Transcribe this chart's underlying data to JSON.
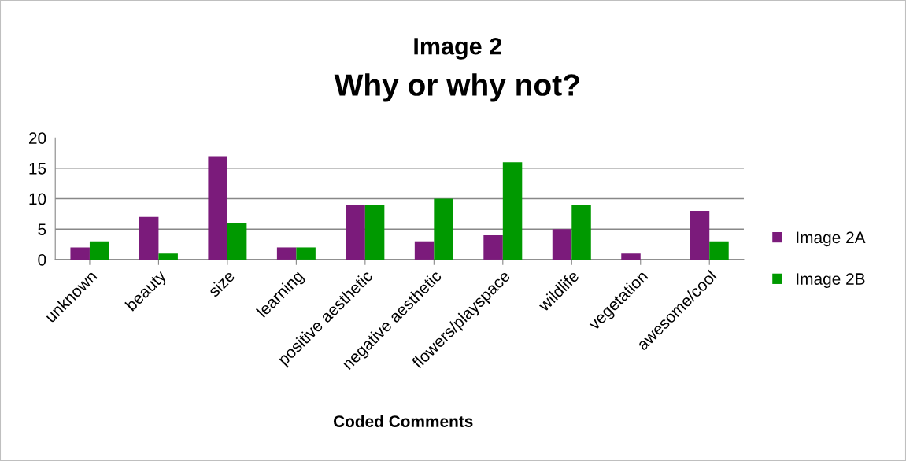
{
  "chart_data": {
    "type": "bar",
    "title": "Image 2",
    "subtitle": "Why or why not?",
    "xlabel": "Coded Comments",
    "categories": [
      "unknown",
      "beauty",
      "size",
      "learning",
      "positive aesthetic",
      "negative aesthetic",
      "flowers/playspace",
      "wildlife",
      "vegetation",
      "awesome/cool"
    ],
    "series": [
      {
        "name": "Image 2A",
        "color": "#7b1b7b",
        "values": [
          2,
          7,
          17,
          2,
          9,
          3,
          4,
          5,
          1,
          8
        ]
      },
      {
        "name": "Image 2B",
        "color": "#009900",
        "values": [
          3,
          1,
          6,
          2,
          9,
          10,
          16,
          9,
          0,
          3
        ]
      }
    ],
    "ylim": [
      0,
      20
    ],
    "yticks": [
      0,
      5,
      10,
      15,
      20
    ],
    "grid": "y",
    "legend": "right"
  }
}
